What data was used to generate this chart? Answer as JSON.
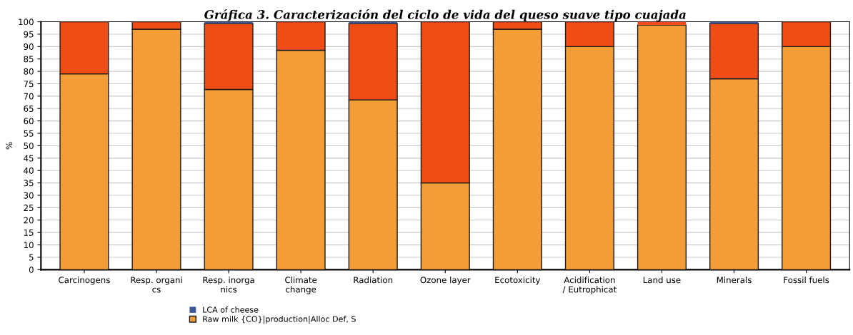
{
  "chart_data": {
    "type": "bar",
    "stacked": true,
    "title": "Gráfica 3. Caracterización del ciclo de vida del queso suave tipo cuajada",
    "ylabel": "%",
    "categories": [
      "Carcinogens",
      "Resp. organi\ncs",
      "Resp. inorga\nnics",
      "Climate\nchange",
      "Radiation",
      "Ozone layer",
      "Ecotoxicity",
      "Acidification\n/ Eutrophicat",
      "Land use",
      "Minerals",
      "Fossil fuels"
    ],
    "series": [
      {
        "name": "Raw milk {CO}|production|Alloc Def, S",
        "color": "#f29d38",
        "values": [
          79,
          97,
          72.7,
          88.5,
          68.5,
          35,
          97,
          90,
          98.7,
          77,
          90
        ]
      },
      {
        "color": "#ef4d15",
        "values": [
          21,
          3,
          26.6,
          11.5,
          30.8,
          65,
          3,
          10,
          1.3,
          22.3,
          10
        ]
      },
      {
        "name": "LCA of cheese",
        "color": "#3c5a9a",
        "values": [
          0,
          0,
          0.7,
          0,
          0.7,
          0,
          0,
          0,
          0,
          0.7,
          0
        ]
      }
    ],
    "ylim": [
      0,
      100
    ],
    "yticks": [
      0,
      5,
      10,
      15,
      20,
      25,
      30,
      35,
      40,
      45,
      50,
      55,
      60,
      65,
      70,
      75,
      80,
      85,
      90,
      95,
      100
    ],
    "grid": "y",
    "legend": "bottom"
  }
}
